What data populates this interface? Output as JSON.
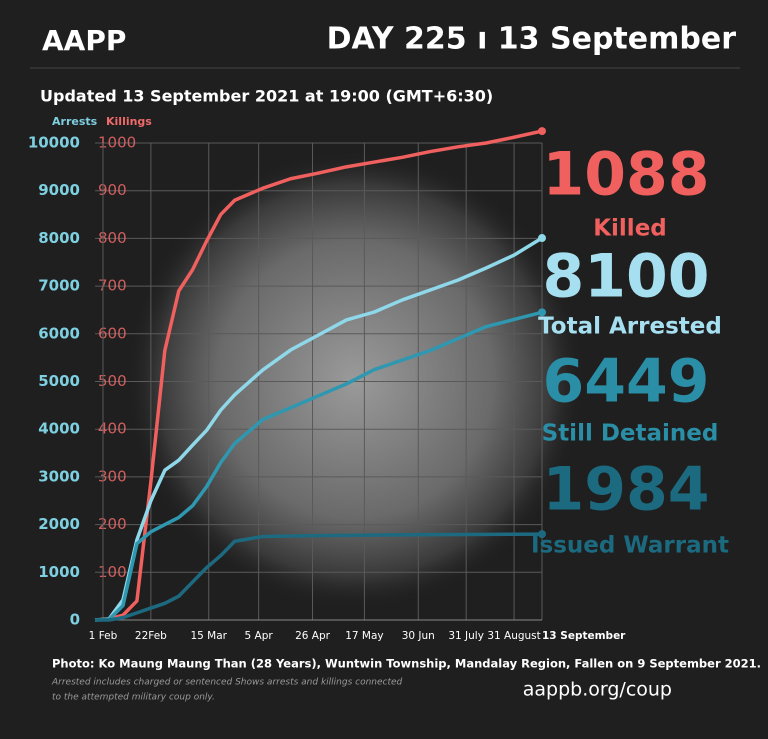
{
  "header": {
    "brand": "AAPP",
    "day": "DAY 225 ı 13 September",
    "updated": "Updated 13 September 2021 at 19:00 (GMT+6:30)"
  },
  "chart_data": {
    "type": "line",
    "y_label": "Arrests",
    "y2_label": "Killings",
    "y_label_color": "#7ecfe0",
    "y2_label_color": "#f06a6a",
    "x": [
      0,
      7,
      14,
      21,
      28,
      35,
      42,
      49,
      56,
      63,
      70,
      84,
      98,
      112,
      126,
      140,
      154,
      168,
      182,
      196,
      210,
      224
    ],
    "xlim": [
      0,
      224
    ],
    "xticks": [
      {
        "value": 4,
        "label": "1 Feb"
      },
      {
        "value": 28,
        "label": "22Feb"
      },
      {
        "value": 57,
        "label": "15 Mar"
      },
      {
        "value": 82,
        "label": "5 Apr"
      },
      {
        "value": 109,
        "label": "26 Apr"
      },
      {
        "value": 135,
        "label": "17 May"
      },
      {
        "value": 162,
        "label": "30 Jun"
      },
      {
        "value": 186,
        "label": "31 July"
      },
      {
        "value": 210,
        "label": "31 August"
      },
      {
        "value": 224,
        "label": "13 September"
      }
    ],
    "ylim": [
      0,
      10000
    ],
    "yticks": [
      0,
      1000,
      2000,
      3000,
      4000,
      5000,
      6000,
      7000,
      8000,
      9000,
      10000
    ],
    "y2lim": [
      0,
      1000
    ],
    "y2ticks": [
      100,
      200,
      300,
      400,
      500,
      600,
      700,
      800,
      900,
      1000
    ],
    "grid": true,
    "series": [
      {
        "name": "Killings",
        "color": "#f0605e",
        "axis": "y2",
        "values": [
          0,
          2,
          10,
          40,
          290,
          565,
          690,
          735,
          795,
          850,
          880,
          905,
          925,
          937,
          950,
          960,
          970,
          982,
          992,
          1000,
          1012,
          1025
        ]
      },
      {
        "name": "Total Arrested",
        "color": "#8fd8ea",
        "values": [
          0,
          20,
          420,
          1680,
          2500,
          3140,
          3350,
          3670,
          3980,
          4400,
          4720,
          5240,
          5660,
          5975,
          6290,
          6457,
          6710,
          6918,
          7128,
          7380,
          7650,
          8008
        ]
      },
      {
        "name": "Still Detained",
        "color": "#2f98b0",
        "values": [
          0,
          10,
          300,
          1600,
          1850,
          2000,
          2150,
          2400,
          2800,
          3300,
          3700,
          4200,
          4450,
          4700,
          4950,
          5250,
          5450,
          5650,
          5900,
          6150,
          6300,
          6450
        ]
      },
      {
        "name": "Issued Warrant",
        "color": "#1d6a80",
        "values": [
          0,
          0,
          50,
          150,
          250,
          350,
          500,
          800,
          1100,
          1350,
          1650,
          1750,
          1760,
          1770,
          1775,
          1780,
          1785,
          1790,
          1792,
          1795,
          1798,
          1800
        ]
      }
    ]
  },
  "stats": [
    {
      "number": "1088",
      "label": "Killed",
      "color": "#f0605e",
      "label_color": "#f0605e"
    },
    {
      "number": "8100",
      "label": "Total Arrested",
      "color": "#a6e0f0",
      "label_color": "#a6e0f0"
    },
    {
      "number": "6449",
      "label": "Still Detained",
      "color": "#2a8ea6",
      "label_color": "#2a8ea6"
    },
    {
      "number": "1984",
      "label": "Issued Warrant",
      "color": "#1b6a80",
      "label_color": "#1b6a80"
    }
  ],
  "footer": {
    "caption": "Photo:  Ko Maung Maung Than (28 Years), Wuntwin Township, Mandalay Region, Fallen on 9 September 2021.",
    "note1": "Arrested includes charged or sentenced Shows arrests and killings connected",
    "note2": "to the attempted military coup only.",
    "url": "aappb.org/coup"
  }
}
